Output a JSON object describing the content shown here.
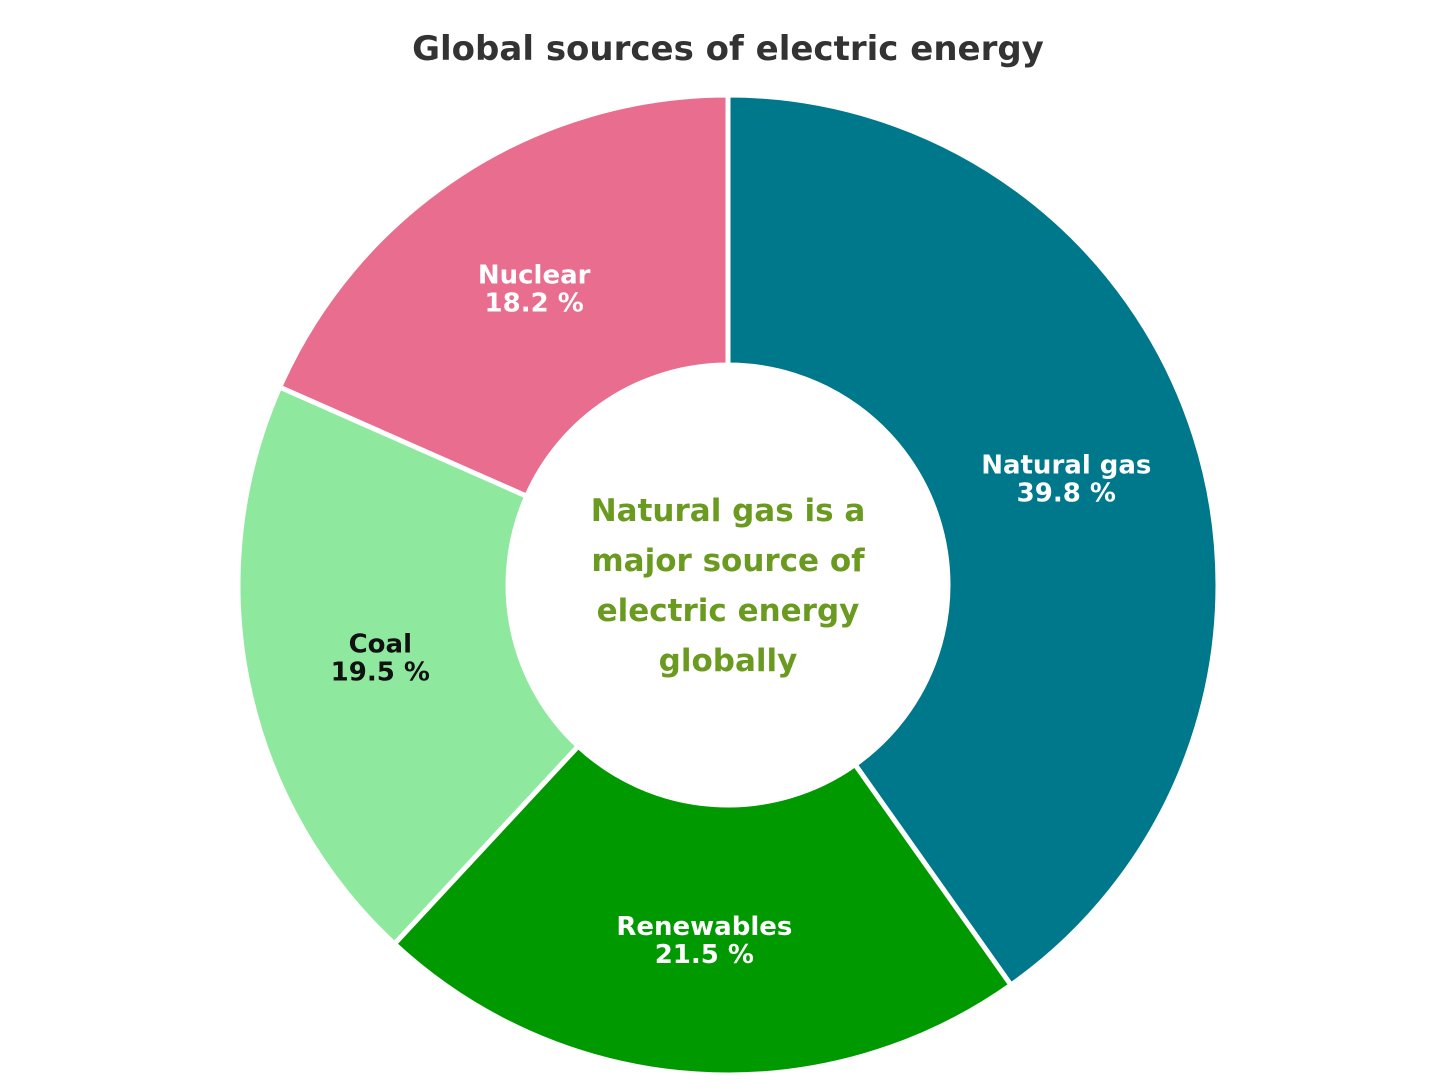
{
  "chart_data": {
    "type": "pie",
    "title": "Global sources of electric energy",
    "slices": [
      {
        "label": "Natural gas",
        "value": 39.8,
        "value_label": "39.8 %",
        "color": "#00788c",
        "text_color": "#ffffff"
      },
      {
        "label": "Renewables",
        "value": 21.5,
        "value_label": "21.5 %",
        "color": "#009a00",
        "text_color": "#ffffff"
      },
      {
        "label": "Coal",
        "value": 19.5,
        "value_label": "19.5 %",
        "color": "#8ee89e",
        "text_color": "#111111"
      },
      {
        "label": "Nuclear",
        "value": 18.2,
        "value_label": "18.2 %",
        "color": "#e96d8e",
        "text_color": "#ffffff"
      }
    ],
    "donut": true,
    "center_annotation": [
      "Natural gas is a",
      "major source of",
      "electric energy",
      "globally"
    ],
    "center_annotation_color": "#6a9a1f"
  }
}
